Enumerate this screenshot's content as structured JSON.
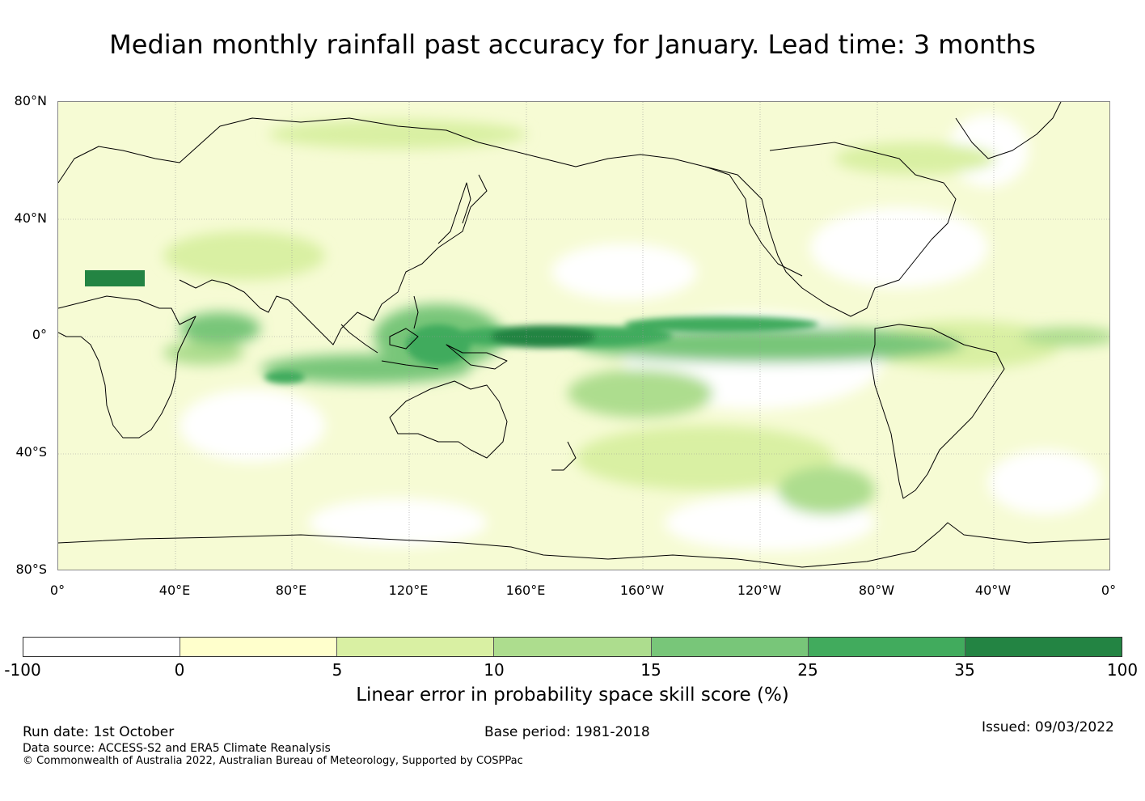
{
  "title": "Median monthly rainfall past accuracy for January. Lead time: 3 months",
  "map": {
    "lat_labels": [
      "80°N",
      "40°N",
      "0°",
      "40°S",
      "80°S"
    ],
    "lon_labels": [
      "0°",
      "40°E",
      "80°E",
      "120°E",
      "160°E",
      "160°W",
      "120°W",
      "80°W",
      "40°W",
      "0°"
    ]
  },
  "colorbar": {
    "colors": [
      "#ffffff",
      "#ffffcc",
      "#d9f0a3",
      "#addd8e",
      "#78c679",
      "#41ab5d",
      "#238443"
    ],
    "ticks": [
      "-100",
      "0",
      "5",
      "10",
      "15",
      "25",
      "35",
      "100"
    ],
    "label": "Linear error in probability space skill score (%)"
  },
  "footer": {
    "run_date": "Run date: 1st October",
    "base_period": "Base period: 1981-2018",
    "issued": "Issued: 09/03/2022",
    "data_source": "Data source: ACCESS-S2 and ERA5 Climate Reanalysis",
    "copyright": "© Commonwealth of Australia 2022, Australian Bureau of Meteorology, Supported by COSPPac"
  }
}
